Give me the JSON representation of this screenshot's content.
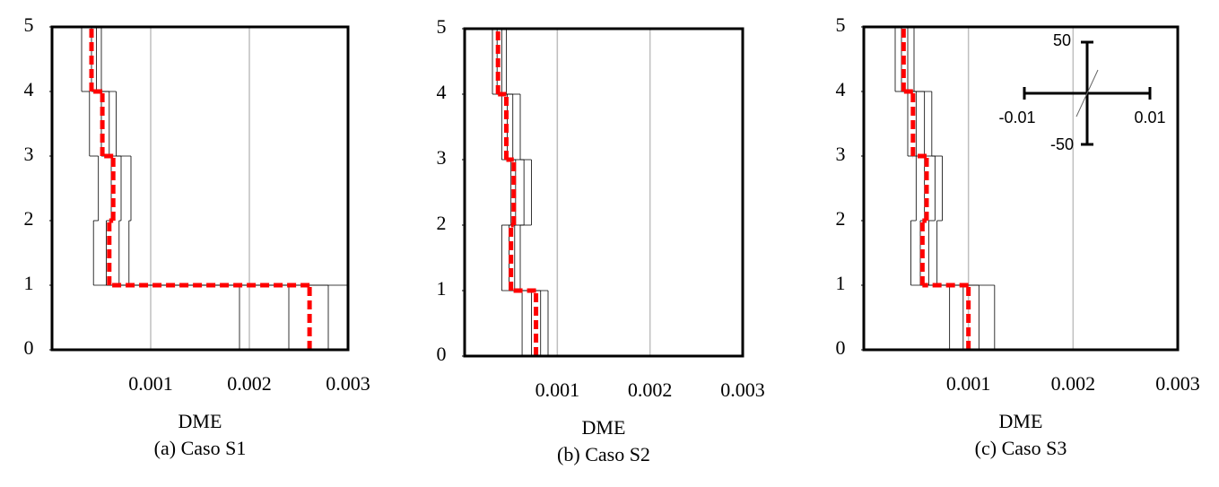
{
  "chart_data": [
    {
      "type": "step",
      "xlabel": "DME",
      "caption": "(a) Caso S1",
      "xlim": [
        0,
        0.003
      ],
      "xticks": [
        0.001,
        0.002,
        0.003
      ],
      "ylim": [
        0,
        5
      ],
      "yticks": [
        0,
        1,
        2,
        3,
        4,
        5
      ],
      "grid": true,
      "color": "#ff0000",
      "values": [
        0.00261,
        0.00058,
        0.00062,
        0.00051,
        0.0004
      ],
      "records": [
        [
          0.0019,
          0.00042,
          0.00047,
          0.00038,
          0.0003
        ],
        [
          0.0024,
          0.00055,
          0.0006,
          0.0005,
          0.0004
        ],
        [
          0.0028,
          0.00068,
          0.0007,
          0.00058,
          0.00045
        ],
        [
          0.003,
          0.00078,
          0.0008,
          0.00065,
          0.0005
        ]
      ]
    },
    {
      "type": "step",
      "xlabel": "DME",
      "caption": "(b) Caso S2",
      "xlim": [
        0,
        0.003
      ],
      "xticks": [
        0.001,
        0.002,
        0.003
      ],
      "ylim": [
        0,
        5
      ],
      "yticks": [
        0,
        1,
        2,
        3,
        4,
        5
      ],
      "grid": true,
      "color": "#ff0000",
      "values": [
        0.00077,
        0.0005,
        0.00053,
        0.00045,
        0.00036
      ],
      "records": [
        [
          0.00062,
          0.0004,
          0.0005,
          0.0004,
          0.0003
        ],
        [
          0.00072,
          0.00048,
          0.00055,
          0.00046,
          0.00035
        ],
        [
          0.00082,
          0.00054,
          0.00064,
          0.00052,
          0.0004
        ],
        [
          0.0009,
          0.0006,
          0.00072,
          0.0006,
          0.00045
        ]
      ]
    },
    {
      "type": "step",
      "xlabel": "DME",
      "caption": "(c) Caso S3",
      "xlim": [
        0,
        0.003
      ],
      "xticks": [
        0.001,
        0.002,
        0.003
      ],
      "ylim": [
        0,
        5
      ],
      "yticks": [
        0,
        1,
        2,
        3,
        4,
        5
      ],
      "grid": true,
      "color": "#ff0000",
      "values": [
        0.001,
        0.00056,
        0.0006,
        0.00047,
        0.00038
      ],
      "records": [
        [
          0.00082,
          0.00045,
          0.0005,
          0.00042,
          0.0003
        ],
        [
          0.00095,
          0.00054,
          0.00058,
          0.0005,
          0.00036
        ],
        [
          0.0011,
          0.00062,
          0.00068,
          0.00058,
          0.00042
        ],
        [
          0.00125,
          0.0007,
          0.00075,
          0.00065,
          0.00048
        ]
      ],
      "inset": {
        "top": "50",
        "bottom": "-50",
        "left": "-0.01",
        "right": "0.01"
      }
    }
  ]
}
